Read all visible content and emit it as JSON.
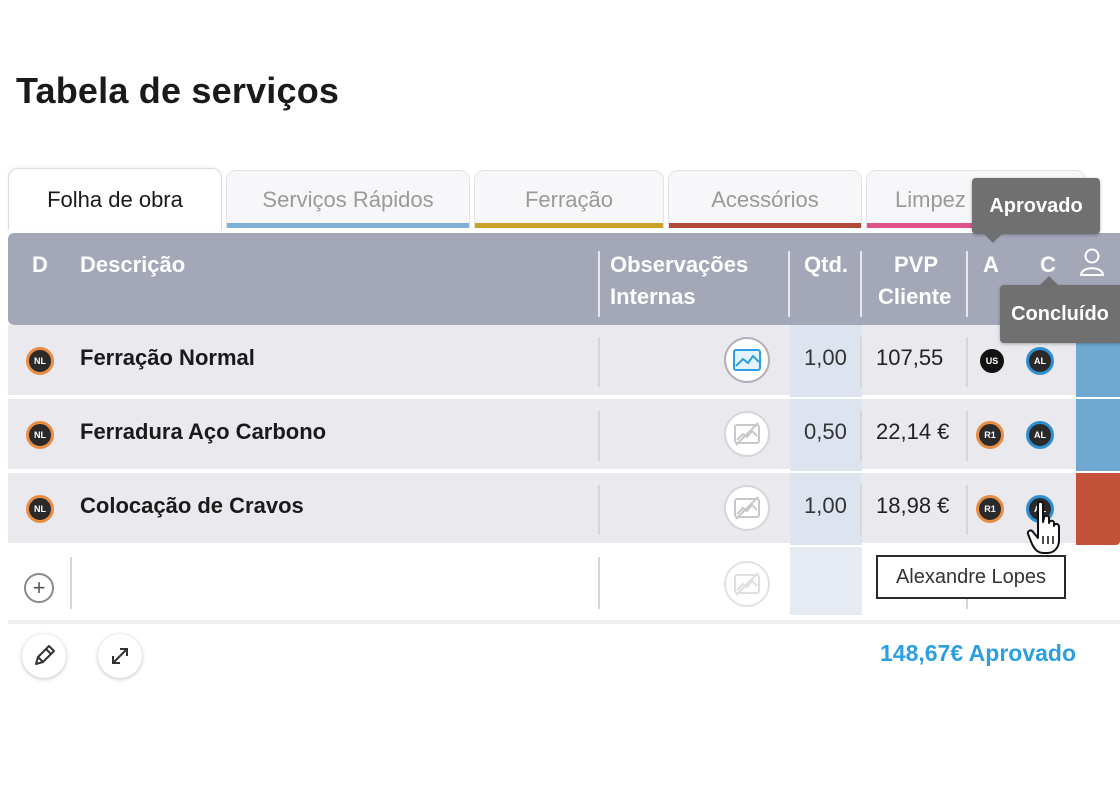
{
  "page": {
    "title": "Tabela de serviços"
  },
  "tabs": [
    {
      "label": "Folha de obra",
      "color": "#ffffff"
    },
    {
      "label": "Serviços Rápidos",
      "color": "#7fb0d6"
    },
    {
      "label": "Ferração",
      "color": "#c9a227"
    },
    {
      "label": "Acessórios",
      "color": "#b04a36"
    },
    {
      "label": "Limpez",
      "color": "#e0528a"
    }
  ],
  "table": {
    "headers": {
      "d": "D",
      "descricao": "Descrição",
      "obs_line1": "Observações",
      "obs_line2": "Internas",
      "qtd": "Qtd.",
      "pvp_line1": "PVP",
      "pvp_line2": "Cliente",
      "a": "A",
      "c": "C"
    },
    "rows": [
      {
        "badge": "NL",
        "descricao": "Ferração Normal",
        "qtd": "1,00",
        "pvp": "107,55",
        "a": "US",
        "c": "AL",
        "obs_active": true,
        "strip_color": "#6fa9d2"
      },
      {
        "badge": "NL",
        "descricao": "Ferradura Aço Carbono",
        "qtd": "0,50",
        "pvp": "22,14 €",
        "a": "R1",
        "c": "AL",
        "obs_active": false,
        "strip_color": "#6fa9d2"
      },
      {
        "badge": "NL",
        "descricao": "Colocação de Cravos",
        "qtd": "1,00",
        "pvp": "18,98 €",
        "a": "R1",
        "c": "AL",
        "obs_active": false,
        "strip_color": "#c4523a"
      }
    ]
  },
  "footer": {
    "total": "148,67€ Aprovado"
  },
  "tooltips": {
    "aprovado": "Aprovado",
    "concluido": "Concluído",
    "user": "Alexandre Lopes"
  },
  "colors": {
    "header_bg": "#a3a7b8",
    "row_bg": "#e9e9ee",
    "qty_col": "#dde4f0",
    "accent_blue": "#2b9fe0",
    "badge_orange": "#e98d43"
  }
}
